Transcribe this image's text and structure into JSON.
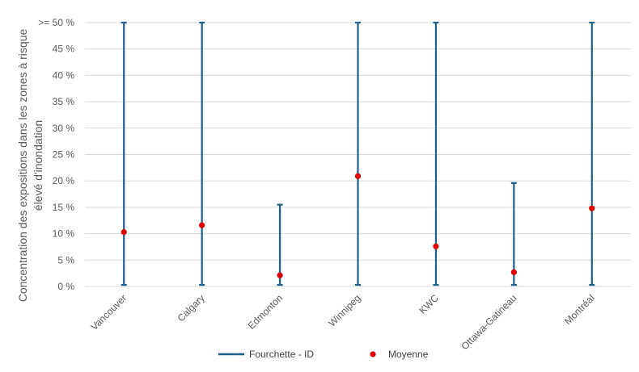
{
  "chart_data": {
    "type": "scatter",
    "ylabel_lines": [
      "Concentration des expositions dans les zones à risque",
      "élevé d'inondation"
    ],
    "y_ticks": [
      {
        "value": 0,
        "label": "0 %"
      },
      {
        "value": 5,
        "label": "5 %"
      },
      {
        "value": 10,
        "label": "10 %"
      },
      {
        "value": 15,
        "label": "15 %"
      },
      {
        "value": 20,
        "label": "20 %"
      },
      {
        "value": 25,
        "label": "25 %"
      },
      {
        "value": 30,
        "label": "30 %"
      },
      {
        "value": 35,
        "label": "35 %"
      },
      {
        "value": 40,
        "label": "40 %"
      },
      {
        "value": 45,
        "label": "45 %"
      },
      {
        "value": 50,
        "label": ">= 50 %"
      }
    ],
    "ylim": [
      0,
      50
    ],
    "grid": true,
    "categories": [
      "Vancouver",
      "Calgary",
      "Edmonton",
      "Winnipeg",
      "KWC",
      "Ottawa-Gatineau",
      "Montréal"
    ],
    "series": [
      {
        "name": "Fourchette - ID",
        "kind": "range",
        "color": "#1F5F8B",
        "low": [
          0.3,
          0.3,
          0.3,
          0.3,
          0.3,
          0.3,
          0.3
        ],
        "high": [
          50,
          50,
          15.5,
          50,
          50,
          19.6,
          50
        ]
      },
      {
        "name": "Moyenne",
        "kind": "point",
        "color": "#E00000",
        "values": [
          10.3,
          11.6,
          2.1,
          20.9,
          7.6,
          2.7,
          14.8
        ]
      }
    ],
    "legend_position": "bottom"
  }
}
